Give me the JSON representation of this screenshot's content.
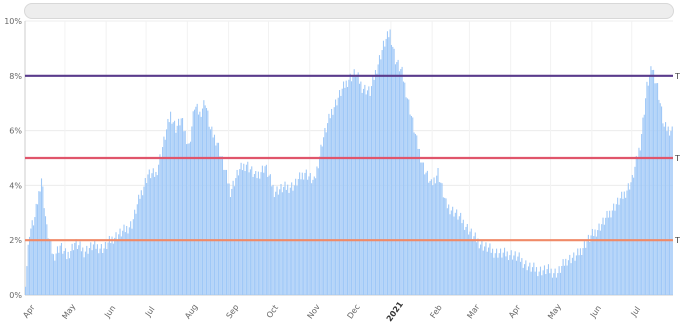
{
  "chart_data": {
    "type": "bar",
    "title": "",
    "xlabel": "",
    "ylabel": "",
    "ylim": [
      0,
      10
    ],
    "grid": true,
    "y_ticks": [
      "0%",
      "2%",
      "4%",
      "6%",
      "8%",
      "10%"
    ],
    "x_tick_labels": [
      "Apr",
      "May",
      "Jun",
      "Jul",
      "Aug",
      "Sep",
      "Oct",
      "Nov",
      "Dec",
      "2021",
      "Feb",
      "Mar",
      "Apr",
      "May",
      "Jun",
      "Jul"
    ],
    "x_start": "2020-04-01",
    "x_end": "2021-08-01",
    "bar_color": "#9fc8f7",
    "series": [
      {
        "values_by_date": [
          [
            "2020-04-01",
            0.5
          ],
          [
            "2020-04-04",
            2.3
          ],
          [
            "2020-04-08",
            2.8
          ],
          [
            "2020-04-13",
            4.3
          ],
          [
            "2020-04-17",
            2.4
          ],
          [
            "2020-04-22",
            1.4
          ],
          [
            "2020-04-27",
            1.8
          ],
          [
            "2020-05-02",
            1.4
          ],
          [
            "2020-05-08",
            1.9
          ],
          [
            "2020-05-15",
            1.6
          ],
          [
            "2020-05-22",
            1.8
          ],
          [
            "2020-05-30",
            1.7
          ],
          [
            "2020-06-06",
            2.1
          ],
          [
            "2020-06-13",
            2.3
          ],
          [
            "2020-06-20",
            2.6
          ],
          [
            "2020-06-26",
            3.6
          ],
          [
            "2020-07-02",
            4.4
          ],
          [
            "2020-07-08",
            4.4
          ],
          [
            "2020-07-14",
            5.6
          ],
          [
            "2020-07-19",
            6.6
          ],
          [
            "2020-07-23",
            6.1
          ],
          [
            "2020-07-27",
            6.4
          ],
          [
            "2020-08-02",
            5.4
          ],
          [
            "2020-08-06",
            6.9
          ],
          [
            "2020-08-10",
            6.6
          ],
          [
            "2020-08-14",
            7.1
          ],
          [
            "2020-08-18",
            6.0
          ],
          [
            "2020-08-23",
            5.6
          ],
          [
            "2020-08-28",
            4.7
          ],
          [
            "2020-09-02",
            3.8
          ],
          [
            "2020-09-08",
            4.5
          ],
          [
            "2020-09-14",
            4.8
          ],
          [
            "2020-09-21",
            4.3
          ],
          [
            "2020-09-28",
            4.7
          ],
          [
            "2020-10-05",
            3.8
          ],
          [
            "2020-10-12",
            3.9
          ],
          [
            "2020-10-20",
            4.0
          ],
          [
            "2020-10-28",
            4.5
          ],
          [
            "2020-11-04",
            4.1
          ],
          [
            "2020-11-10",
            5.6
          ],
          [
            "2020-11-17",
            6.7
          ],
          [
            "2020-11-24",
            7.4
          ],
          [
            "2020-11-30",
            7.9
          ],
          [
            "2020-12-05",
            8.1
          ],
          [
            "2020-12-10",
            7.6
          ],
          [
            "2020-12-16",
            7.4
          ],
          [
            "2020-12-21",
            8.3
          ],
          [
            "2020-12-26",
            9.1
          ],
          [
            "2020-12-31",
            9.6
          ],
          [
            "2021-01-04",
            8.6
          ],
          [
            "2021-01-09",
            8.1
          ],
          [
            "2021-01-14",
            7.0
          ],
          [
            "2021-01-20",
            5.6
          ],
          [
            "2021-01-25",
            4.7
          ],
          [
            "2021-01-31",
            4.0
          ],
          [
            "2021-02-05",
            4.5
          ],
          [
            "2021-02-11",
            3.3
          ],
          [
            "2021-02-18",
            3.0
          ],
          [
            "2021-02-25",
            2.6
          ],
          [
            "2021-03-04",
            2.1
          ],
          [
            "2021-03-11",
            1.8
          ],
          [
            "2021-03-18",
            1.6
          ],
          [
            "2021-03-25",
            1.5
          ],
          [
            "2021-04-01",
            1.5
          ],
          [
            "2021-04-08",
            1.3
          ],
          [
            "2021-04-15",
            1.0
          ],
          [
            "2021-04-22",
            0.9
          ],
          [
            "2021-04-29",
            0.9
          ],
          [
            "2021-05-06",
            0.8
          ],
          [
            "2021-05-13",
            1.3
          ],
          [
            "2021-05-20",
            1.4
          ],
          [
            "2021-05-27",
            1.9
          ],
          [
            "2021-06-03",
            2.3
          ],
          [
            "2021-06-10",
            2.7
          ],
          [
            "2021-06-17",
            3.2
          ],
          [
            "2021-06-24",
            3.6
          ],
          [
            "2021-07-01",
            4.2
          ],
          [
            "2021-07-07",
            5.5
          ],
          [
            "2021-07-12",
            7.6
          ],
          [
            "2021-07-16",
            8.3
          ],
          [
            "2021-07-20",
            7.6
          ],
          [
            "2021-07-25",
            6.1
          ],
          [
            "2021-08-01",
            6.0
          ]
        ]
      }
    ],
    "thresholds": [
      {
        "value": 8,
        "color": "#5a3b8c",
        "label": "T"
      },
      {
        "value": 5,
        "color": "#e0556b",
        "label": "T"
      },
      {
        "value": 2,
        "color": "#f08a68",
        "label": "T"
      }
    ]
  }
}
